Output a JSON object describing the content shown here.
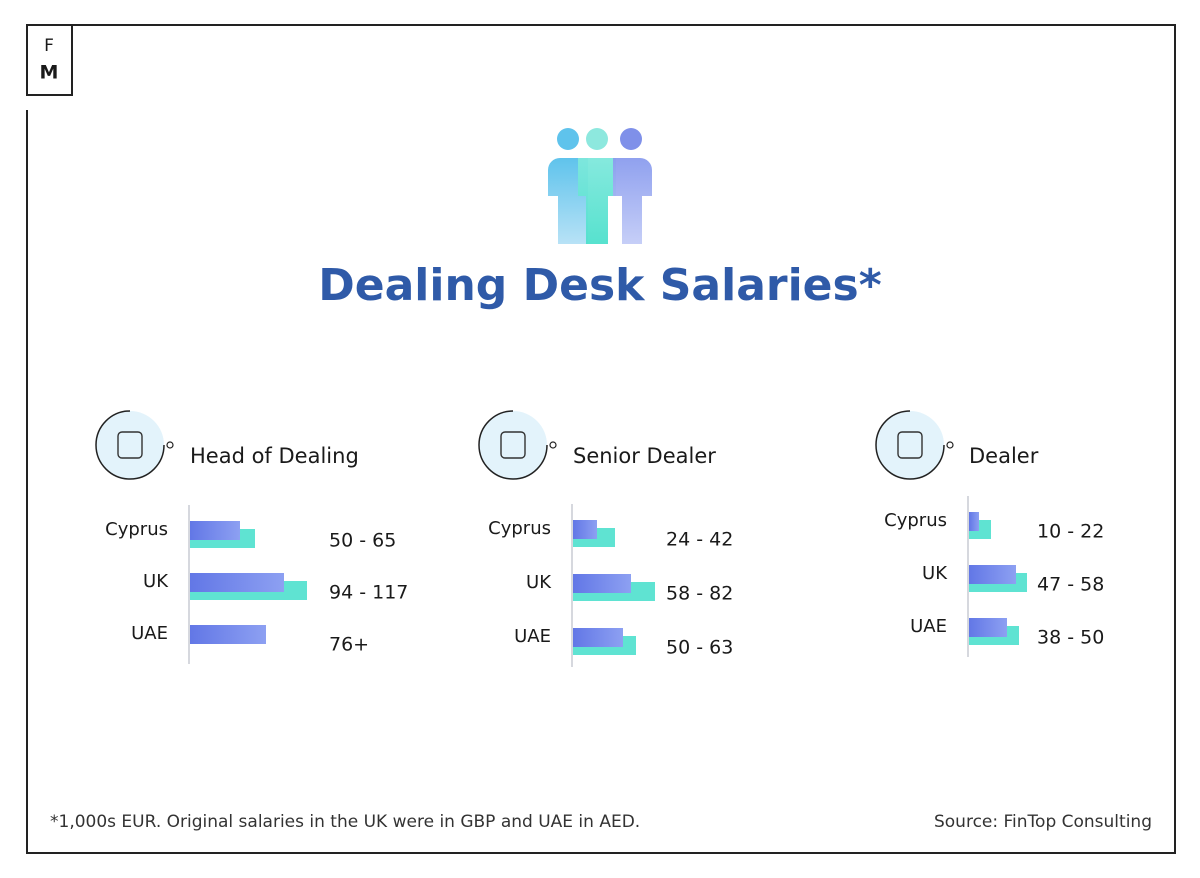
{
  "logo": {
    "top": "F",
    "bottom": "M"
  },
  "title": "Dealing Desk Salaries*",
  "footnote": "*1,000s EUR. Original salaries in the UK were in GBP and UAE in AED.",
  "source": "Source: FinTop Consulting",
  "chart_data": [
    {
      "type": "bar",
      "orientation": "horizontal",
      "title": "Head of Dealing",
      "categories": [
        "Cyprus",
        "UK",
        "UAE"
      ],
      "series": [
        {
          "color": "#6f83ea",
          "values": [
            50,
            94,
            76
          ]
        },
        {
          "color": "#5fe3d2",
          "values": [
            65,
            117,
            null
          ]
        }
      ],
      "value_labels": [
        "50 - 65",
        "94 - 117",
        "76+"
      ]
    },
    {
      "type": "bar",
      "orientation": "horizontal",
      "title": "Senior Dealer",
      "categories": [
        "Cyprus",
        "UK",
        "UAE"
      ],
      "series": [
        {
          "color": "#6f83ea",
          "values": [
            24,
            58,
            50
          ]
        },
        {
          "color": "#5fe3d2",
          "values": [
            42,
            82,
            63
          ]
        }
      ],
      "value_labels": [
        "24 - 42",
        "58 - 82",
        "50 - 63"
      ]
    },
    {
      "type": "bar",
      "orientation": "horizontal",
      "title": "Dealer",
      "categories": [
        "Cyprus",
        "UK",
        "UAE"
      ],
      "series": [
        {
          "color": "#6f83ea",
          "values": [
            10,
            47,
            38
          ]
        },
        {
          "color": "#5fe3d2",
          "values": [
            22,
            58,
            50
          ]
        }
      ],
      "value_labels": [
        "10 - 22",
        "47 - 58",
        "38 - 50"
      ]
    }
  ]
}
